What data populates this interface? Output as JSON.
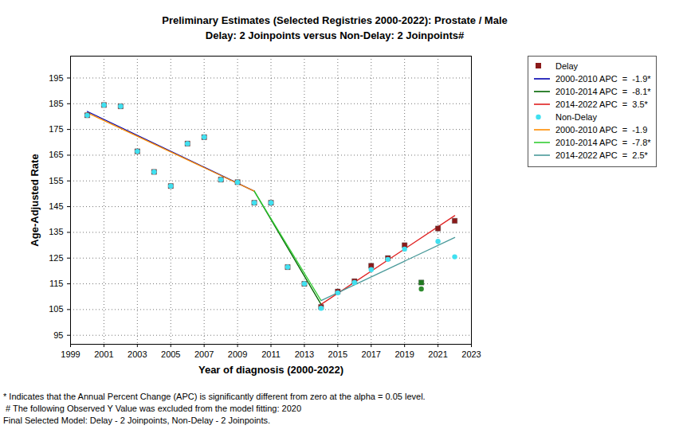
{
  "chart_data": {
    "type": "line",
    "title": "Preliminary Estimates (Selected Registries 2000-2022): Prostate / Male",
    "subtitle": "Delay: 2 Joinpoints  versus  Non-Delay: 2 Joinpoints#",
    "x_label": "Year of diagnosis (2000-2022)",
    "y_label": "Age-Adjusted Rate",
    "xlim": [
      1999,
      2023
    ],
    "xticks": [
      1999,
      2001,
      2003,
      2005,
      2007,
      2009,
      2011,
      2013,
      2015,
      2017,
      2019,
      2021,
      2023
    ],
    "ylim": [
      91.5,
      203.5
    ],
    "yticks": [
      95,
      105,
      115,
      125,
      135,
      145,
      155,
      165,
      175,
      185,
      195
    ],
    "grid": true,
    "legend": "right",
    "series": [
      {
        "name": "Delay",
        "type": "scatter",
        "marker": "square",
        "color": "#8b1a1a",
        "x": [
          2000,
          2001,
          2002,
          2003,
          2004,
          2005,
          2006,
          2007,
          2008,
          2009,
          2010,
          2011,
          2012,
          2013,
          2014,
          2015,
          2016,
          2017,
          2018,
          2019,
          2020,
          2021,
          2022
        ],
        "values": [
          180.5,
          184.5,
          184,
          166.5,
          158.5,
          153,
          169.5,
          172,
          155.5,
          154.5,
          146.5,
          146.5,
          121.5,
          115,
          106,
          112,
          116,
          122,
          125,
          130,
          115.5,
          136.5,
          139.5
        ],
        "colors": [
          "#8b1a1a",
          "#8b1a1a",
          "#8b1a1a",
          "#8b1a1a",
          "#8b1a1a",
          "#8b1a1a",
          "#8b1a1a",
          "#8b1a1a",
          "#8b1a1a",
          "#8b1a1a",
          "#8b1a1a",
          "#8b1a1a",
          "#8b1a1a",
          "#8b1a1a",
          "#8b1a1a",
          "#8b1a1a",
          "#8b1a1a",
          "#8b1a1a",
          "#8b1a1a",
          "#8b1a1a",
          "#1f7a1f",
          "#8b1a1a",
          "#8b1a1a"
        ]
      },
      {
        "name": "2000-2010 APC  =  -1.9*",
        "type": "line",
        "line_style": "solid",
        "color": "#0000b0",
        "x": [
          2000,
          2010
        ],
        "values": [
          182,
          151
        ]
      },
      {
        "name": "2010-2014 APC  =  -8.1*",
        "type": "line",
        "line_style": "solid",
        "color": "#006400",
        "x": [
          2010,
          2014
        ],
        "values": [
          151,
          107
        ]
      },
      {
        "name": "2014-2022 APC  =  3.5*",
        "type": "line",
        "line_style": "solid",
        "color": "#e02020",
        "x": [
          2014,
          2022
        ],
        "values": [
          107,
          141.5
        ]
      },
      {
        "name": "Non-Delay",
        "type": "scatter",
        "marker": "circle",
        "color": "#40e0f0",
        "x": [
          2000,
          2001,
          2002,
          2003,
          2004,
          2005,
          2006,
          2007,
          2008,
          2009,
          2010,
          2011,
          2012,
          2013,
          2014,
          2015,
          2016,
          2017,
          2018,
          2019,
          2020,
          2021,
          2022
        ],
        "values": [
          180.5,
          184.5,
          184,
          166.5,
          158.5,
          153,
          169.5,
          172,
          155.5,
          154.5,
          146.5,
          146.5,
          121.5,
          115,
          105.5,
          111.5,
          115.5,
          120.5,
          124.5,
          128.5,
          113,
          131.5,
          125.5
        ],
        "colors": [
          "#40e0f0",
          "#40e0f0",
          "#40e0f0",
          "#40e0f0",
          "#40e0f0",
          "#40e0f0",
          "#40e0f0",
          "#40e0f0",
          "#40e0f0",
          "#40e0f0",
          "#40e0f0",
          "#40e0f0",
          "#40e0f0",
          "#40e0f0",
          "#40e0f0",
          "#40e0f0",
          "#40e0f0",
          "#40e0f0",
          "#40e0f0",
          "#40e0f0",
          "#2e8b2e",
          "#40e0f0",
          "#40e0f0"
        ]
      },
      {
        "name": "2000-2010 APC  =  -1.9",
        "type": "line",
        "line_style": "solid",
        "color": "#ff8c00",
        "x": [
          2000,
          2010
        ],
        "values": [
          181.5,
          151
        ]
      },
      {
        "name": "2010-2014 APC  =  -7.8*",
        "type": "line",
        "line_style": "solid",
        "color": "#32cd32",
        "x": [
          2010,
          2014
        ],
        "values": [
          151,
          108.5
        ]
      },
      {
        "name": "2014-2022 APC  =  2.5*",
        "type": "line",
        "line_style": "solid",
        "color": "#4a9a9a",
        "x": [
          2014,
          2022
        ],
        "values": [
          108.5,
          133
        ]
      }
    ],
    "notes": [
      "* Indicates that the Annual Percent Change (APC) is significantly different from zero at the alpha = 0.05 level.",
      " # The following Observed Y Value was excluded from the model fitting: 2020",
      "Final Selected Model: Delay - 2 Joinpoints, Non-Delay - 2 Joinpoints."
    ]
  }
}
